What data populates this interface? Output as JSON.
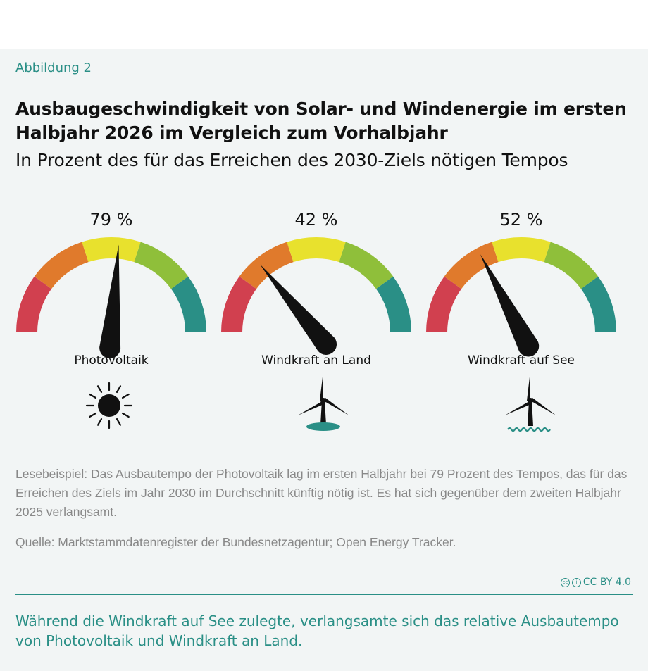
{
  "figure_label": "Abbildung 2",
  "title": "Ausbaugeschwindigkeit von Solar- und Windenergie im ersten Halbjahr 2026 im Vergleich zum Vorhalbjahr",
  "subtitle": "In Prozent des für das Erreichen des 2030-Ziels nötigen Tempos",
  "chart_data": {
    "type": "gauge",
    "range": [
      0,
      150
    ],
    "segments": [
      {
        "from": 0,
        "to": 30,
        "color": "#d1404f"
      },
      {
        "from": 30,
        "to": 60,
        "color": "#e07a2c"
      },
      {
        "from": 60,
        "to": 90,
        "color": "#e8e12d"
      },
      {
        "from": 90,
        "to": 120,
        "color": "#8fbf3a"
      },
      {
        "from": 120,
        "to": 150,
        "color": "#2a8f86"
      }
    ],
    "gauges": [
      {
        "label": "Photovoltaik",
        "value": 79,
        "value_label": "79 %",
        "icon": "sun-icon"
      },
      {
        "label": "Windkraft an Land",
        "value": 42,
        "value_label": "42 %",
        "icon": "wind-turbine-land-icon"
      },
      {
        "label": "Windkraft auf See",
        "value": 52,
        "value_label": "52 %",
        "icon": "wind-turbine-sea-icon"
      }
    ]
  },
  "reading_example": "Lesebeispiel: Das Ausbautempo der Photovoltaik lag im ersten Halbjahr bei 79 Prozent des Tempos, das für das Erreichen des Ziels im Jahr 2030 im Durchschnitt künftig nötig ist. Es hat sich gegenüber dem zweiten Halbjahr 2025 verlangsamt.",
  "source": "Quelle: Marktstammdatenregister der Bundesnetzagentur; Open Energy Tracker.",
  "license": "CC BY 4.0",
  "takeaway": "Während die Windkraft auf See zulegte, verlangsamte sich das relative Ausbautempo von Photovoltaik und Windkraft an Land."
}
